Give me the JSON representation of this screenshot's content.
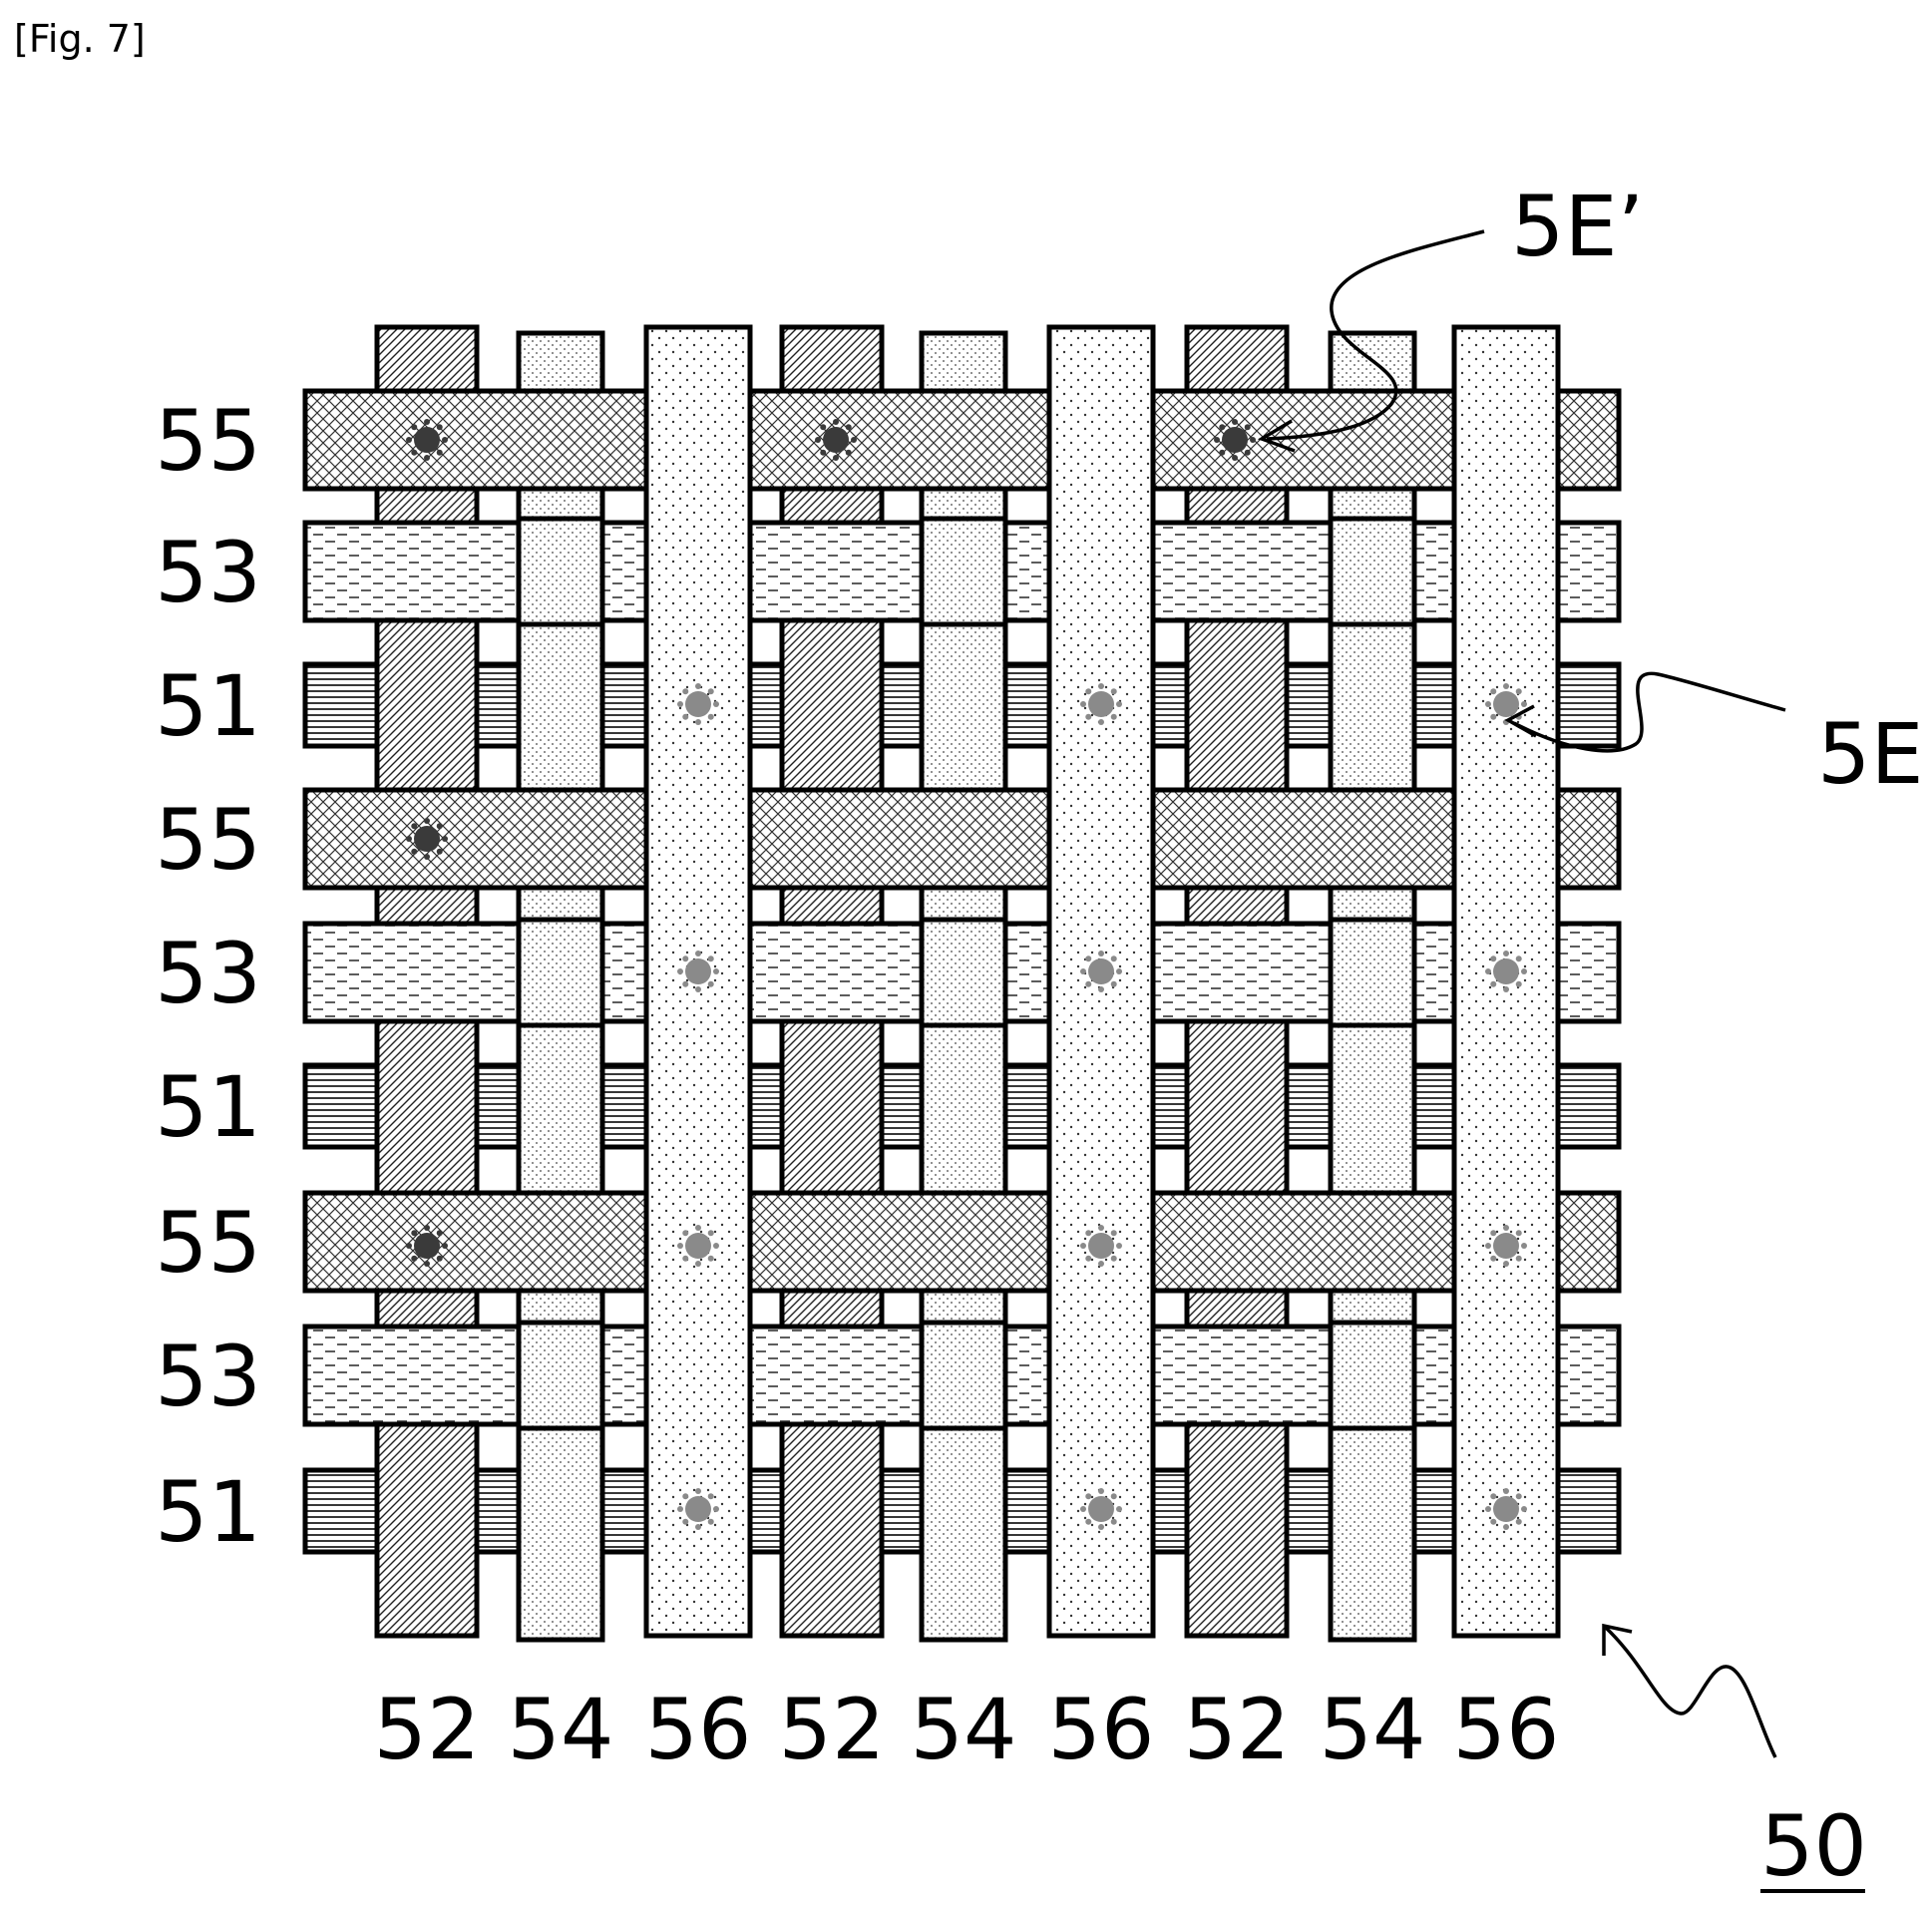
{
  "figure_label": "[Fig. 7]",
  "reference_numeral": "50",
  "row_labels": [
    "55",
    "53",
    "51",
    "55",
    "53",
    "51",
    "55",
    "53",
    "51"
  ],
  "column_labels": [
    "52",
    "54",
    "56",
    "52",
    "54",
    "56",
    "52",
    "54",
    "56"
  ],
  "callouts": {
    "top": "5E’",
    "right": "5E"
  }
}
